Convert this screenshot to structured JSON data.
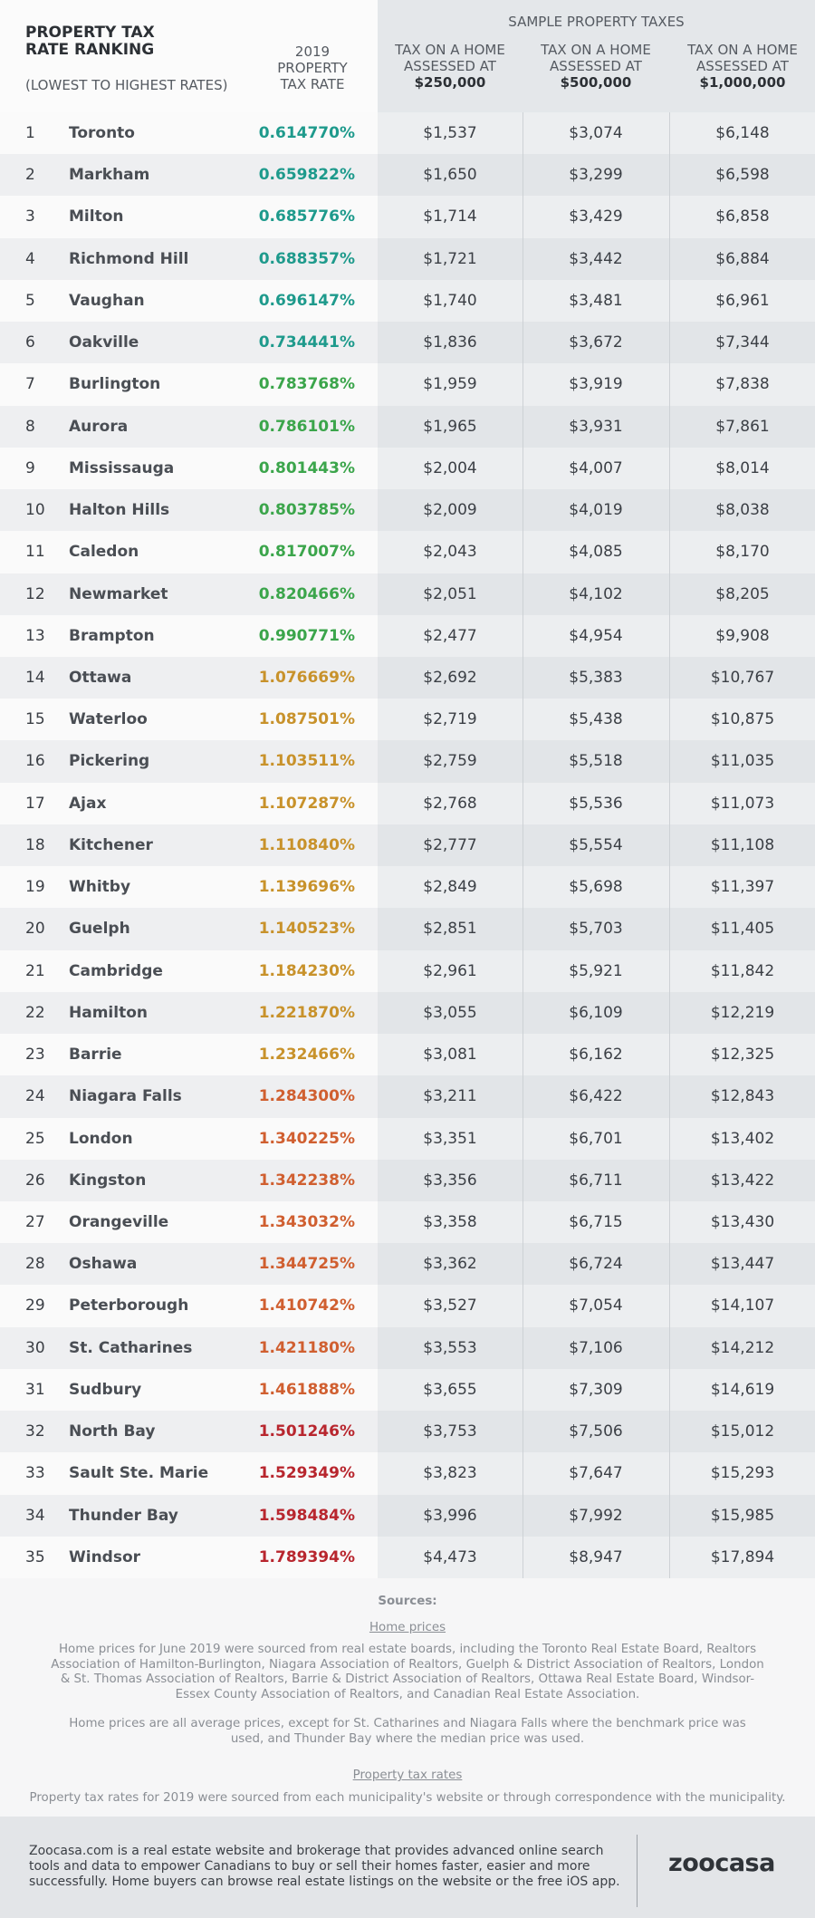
{
  "header": {
    "title": "PROPERTY TAX RATE RANKING",
    "subtitle": "(LOWEST TO HIGHEST RATES)",
    "rate_header": "2019 PROPERTY TAX RATE",
    "group_header": "SAMPLE PROPERTY TAXES",
    "columns": [
      {
        "label": "TAX ON A HOME ASSESSED AT",
        "amount": "$250,000"
      },
      {
        "label": "TAX ON A HOME ASSESSED AT",
        "amount": "$500,000"
      },
      {
        "label": "TAX ON A HOME ASSESSED AT",
        "amount": "$1,000,000"
      }
    ]
  },
  "table": {
    "rate_colors": [
      "#1e9a8c",
      "#1e9a8c",
      "#1e9a8c",
      "#1e9a8c",
      "#1e9a8c",
      "#1e9a8c",
      "#3ba54b",
      "#3ba54b",
      "#3ba54b",
      "#3ba54b",
      "#3ba54b",
      "#3ba54b",
      "#3ba54b",
      "#c8922b",
      "#c8922b",
      "#c8922b",
      "#c8922b",
      "#c8922b",
      "#c8922b",
      "#c8922b",
      "#c8922b",
      "#c8922b",
      "#c8922b",
      "#d05f30",
      "#d05f30",
      "#d05f30",
      "#d05f30",
      "#d05f30",
      "#d05f30",
      "#d05f30",
      "#d05f30",
      "#b8262e",
      "#b8262e",
      "#b8262e",
      "#b8262e"
    ],
    "rows": [
      [
        1,
        "Toronto",
        "0.614770%",
        "$1,537",
        "$3,074",
        "$6,148"
      ],
      [
        2,
        "Markham",
        "0.659822%",
        "$1,650",
        "$3,299",
        "$6,598"
      ],
      [
        3,
        "Milton",
        "0.685776%",
        "$1,714",
        "$3,429",
        "$6,858"
      ],
      [
        4,
        "Richmond Hill",
        "0.688357%",
        "$1,721",
        "$3,442",
        "$6,884"
      ],
      [
        5,
        "Vaughan",
        "0.696147%",
        "$1,740",
        "$3,481",
        "$6,961"
      ],
      [
        6,
        "Oakville",
        "0.734441%",
        "$1,836",
        "$3,672",
        "$7,344"
      ],
      [
        7,
        "Burlington",
        "0.783768%",
        "$1,959",
        "$3,919",
        "$7,838"
      ],
      [
        8,
        "Aurora",
        "0.786101%",
        "$1,965",
        "$3,931",
        "$7,861"
      ],
      [
        9,
        "Mississauga",
        "0.801443%",
        "$2,004",
        "$4,007",
        "$8,014"
      ],
      [
        10,
        "Halton Hills",
        "0.803785%",
        "$2,009",
        "$4,019",
        "$8,038"
      ],
      [
        11,
        "Caledon",
        "0.817007%",
        "$2,043",
        "$4,085",
        "$8,170"
      ],
      [
        12,
        "Newmarket",
        "0.820466%",
        "$2,051",
        "$4,102",
        "$8,205"
      ],
      [
        13,
        "Brampton",
        "0.990771%",
        "$2,477",
        "$4,954",
        "$9,908"
      ],
      [
        14,
        "Ottawa",
        "1.076669%",
        "$2,692",
        "$5,383",
        "$10,767"
      ],
      [
        15,
        "Waterloo",
        "1.087501%",
        "$2,719",
        "$5,438",
        "$10,875"
      ],
      [
        16,
        "Pickering",
        "1.103511%",
        "$2,759",
        "$5,518",
        "$11,035"
      ],
      [
        17,
        "Ajax",
        "1.107287%",
        "$2,768",
        "$5,536",
        "$11,073"
      ],
      [
        18,
        "Kitchener",
        "1.110840%",
        "$2,777",
        "$5,554",
        "$11,108"
      ],
      [
        19,
        "Whitby",
        "1.139696%",
        "$2,849",
        "$5,698",
        "$11,397"
      ],
      [
        20,
        "Guelph",
        "1.140523%",
        "$2,851",
        "$5,703",
        "$11,405"
      ],
      [
        21,
        "Cambridge",
        "1.184230%",
        "$2,961",
        "$5,921",
        "$11,842"
      ],
      [
        22,
        "Hamilton",
        "1.221870%",
        "$3,055",
        "$6,109",
        "$12,219"
      ],
      [
        23,
        "Barrie",
        "1.232466%",
        "$3,081",
        "$6,162",
        "$12,325"
      ],
      [
        24,
        "Niagara Falls",
        "1.284300%",
        "$3,211",
        "$6,422",
        "$12,843"
      ],
      [
        25,
        "London",
        "1.340225%",
        "$3,351",
        "$6,701",
        "$13,402"
      ],
      [
        26,
        "Kingston",
        "1.342238%",
        "$3,356",
        "$6,711",
        "$13,422"
      ],
      [
        27,
        "Orangeville",
        "1.343032%",
        "$3,358",
        "$6,715",
        "$13,430"
      ],
      [
        28,
        "Oshawa",
        "1.344725%",
        "$3,362",
        "$6,724",
        "$13,447"
      ],
      [
        29,
        "Peterborough",
        "1.410742%",
        "$3,527",
        "$7,054",
        "$14,107"
      ],
      [
        30,
        "St. Catharines",
        "1.421180%",
        "$3,553",
        "$7,106",
        "$14,212"
      ],
      [
        31,
        "Sudbury",
        "1.461888%",
        "$3,655",
        "$7,309",
        "$14,619"
      ],
      [
        32,
        "North Bay",
        "1.501246%",
        "$3,753",
        "$7,506",
        "$15,012"
      ],
      [
        33,
        "Sault Ste. Marie",
        "1.529349%",
        "$3,823",
        "$7,647",
        "$15,293"
      ],
      [
        34,
        "Thunder Bay",
        "1.598484%",
        "$3,996",
        "$7,992",
        "$15,985"
      ],
      [
        35,
        "Windsor",
        "1.789394%",
        "$4,473",
        "$8,947",
        "$17,894"
      ]
    ]
  },
  "sources": {
    "heading": "Sources:",
    "home_prices_link": "Home prices",
    "home_prices_text": "Home prices for June 2019 were sourced from real estate boards, including the Toronto Real Estate Board, Realtors Association of Hamilton-Burlington, Niagara Association of Realtors, Guelph & District Association of Realtors, London & St. Thomas Association of Realtors, Barrie & District Association of Realtors, Ottawa Real Estate Board, Windsor-Essex County Association of Realtors, and Canadian Real Estate Association.",
    "home_prices_note": "Home prices are all average prices, except for St. Catharines and Niagara Falls where the benchmark price was used, and Thunder Bay where the median price was used.",
    "tax_rates_link": "Property tax rates",
    "tax_rates_text": "Property tax rates for 2019 were sourced from each municipality's website or through correspondence with the municipality."
  },
  "footer": {
    "text": "Zoocasa.com is a real estate website and brokerage that provides advanced online search tools and data to empower Canadians to buy or sell their homes faster, easier and more successfully. Home buyers can browse real estate listings on the website or the free iOS app.",
    "logo": "zoocasa"
  }
}
